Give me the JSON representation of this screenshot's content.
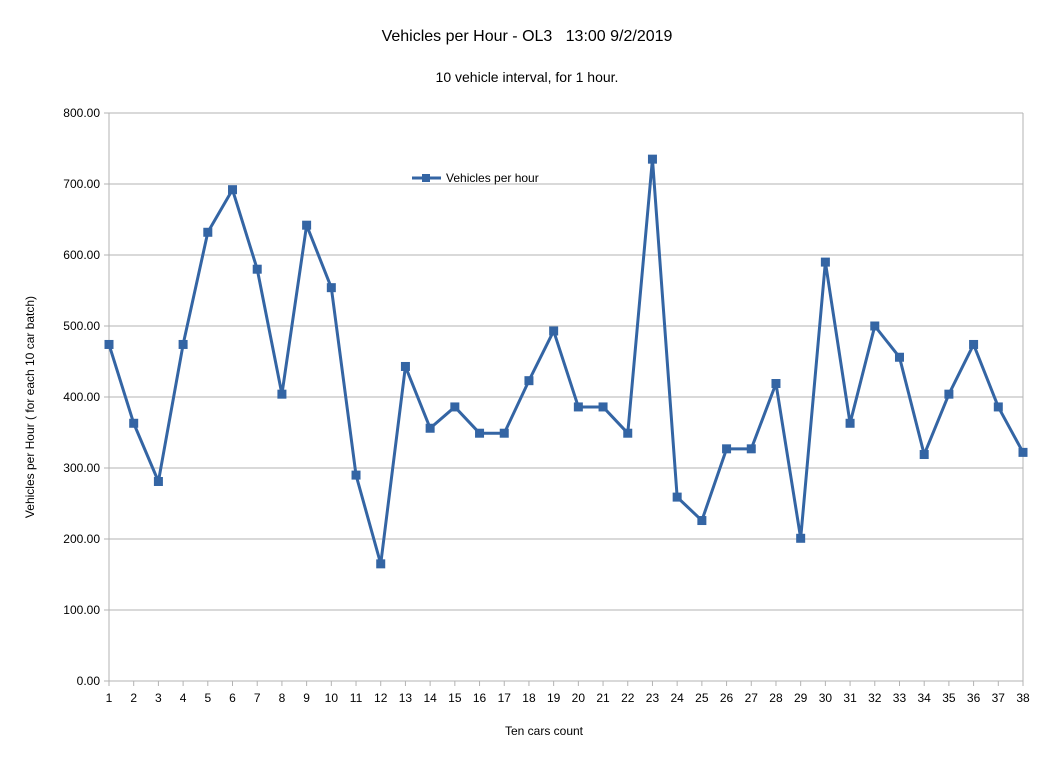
{
  "chart_data": {
    "type": "line",
    "title": "Vehicles per Hour - OL3   13:00 9/2/2019",
    "subtitle": "10 vehicle interval, for 1 hour.",
    "xlabel": "Ten cars count",
    "ylabel": "Vehicles per Hour ( for each 10 car batch)",
    "ylim": [
      0,
      800
    ],
    "yticks": [
      "0.00",
      "100.00",
      "200.00",
      "300.00",
      "400.00",
      "500.00",
      "600.00",
      "700.00",
      "800.00"
    ],
    "grid": true,
    "legend_position": "top-center",
    "categories": [
      "1",
      "2",
      "3",
      "4",
      "5",
      "6",
      "7",
      "8",
      "9",
      "10",
      "11",
      "12",
      "13",
      "14",
      "15",
      "16",
      "17",
      "18",
      "19",
      "20",
      "21",
      "22",
      "23",
      "24",
      "25",
      "26",
      "27",
      "28",
      "29",
      "30",
      "31",
      "32",
      "33",
      "34",
      "35",
      "36",
      "37",
      "38"
    ],
    "series": [
      {
        "name": "Vehicles per hour",
        "color": "#3465a4",
        "values": [
          474,
          363,
          281,
          474,
          632,
          692,
          580,
          404,
          642,
          554,
          290,
          165,
          443,
          356,
          386,
          349,
          349,
          423,
          493,
          386,
          386,
          349,
          735,
          259,
          226,
          327,
          327,
          419,
          201,
          590,
          363,
          500,
          456,
          319,
          404,
          474,
          386,
          322
        ]
      }
    ]
  }
}
